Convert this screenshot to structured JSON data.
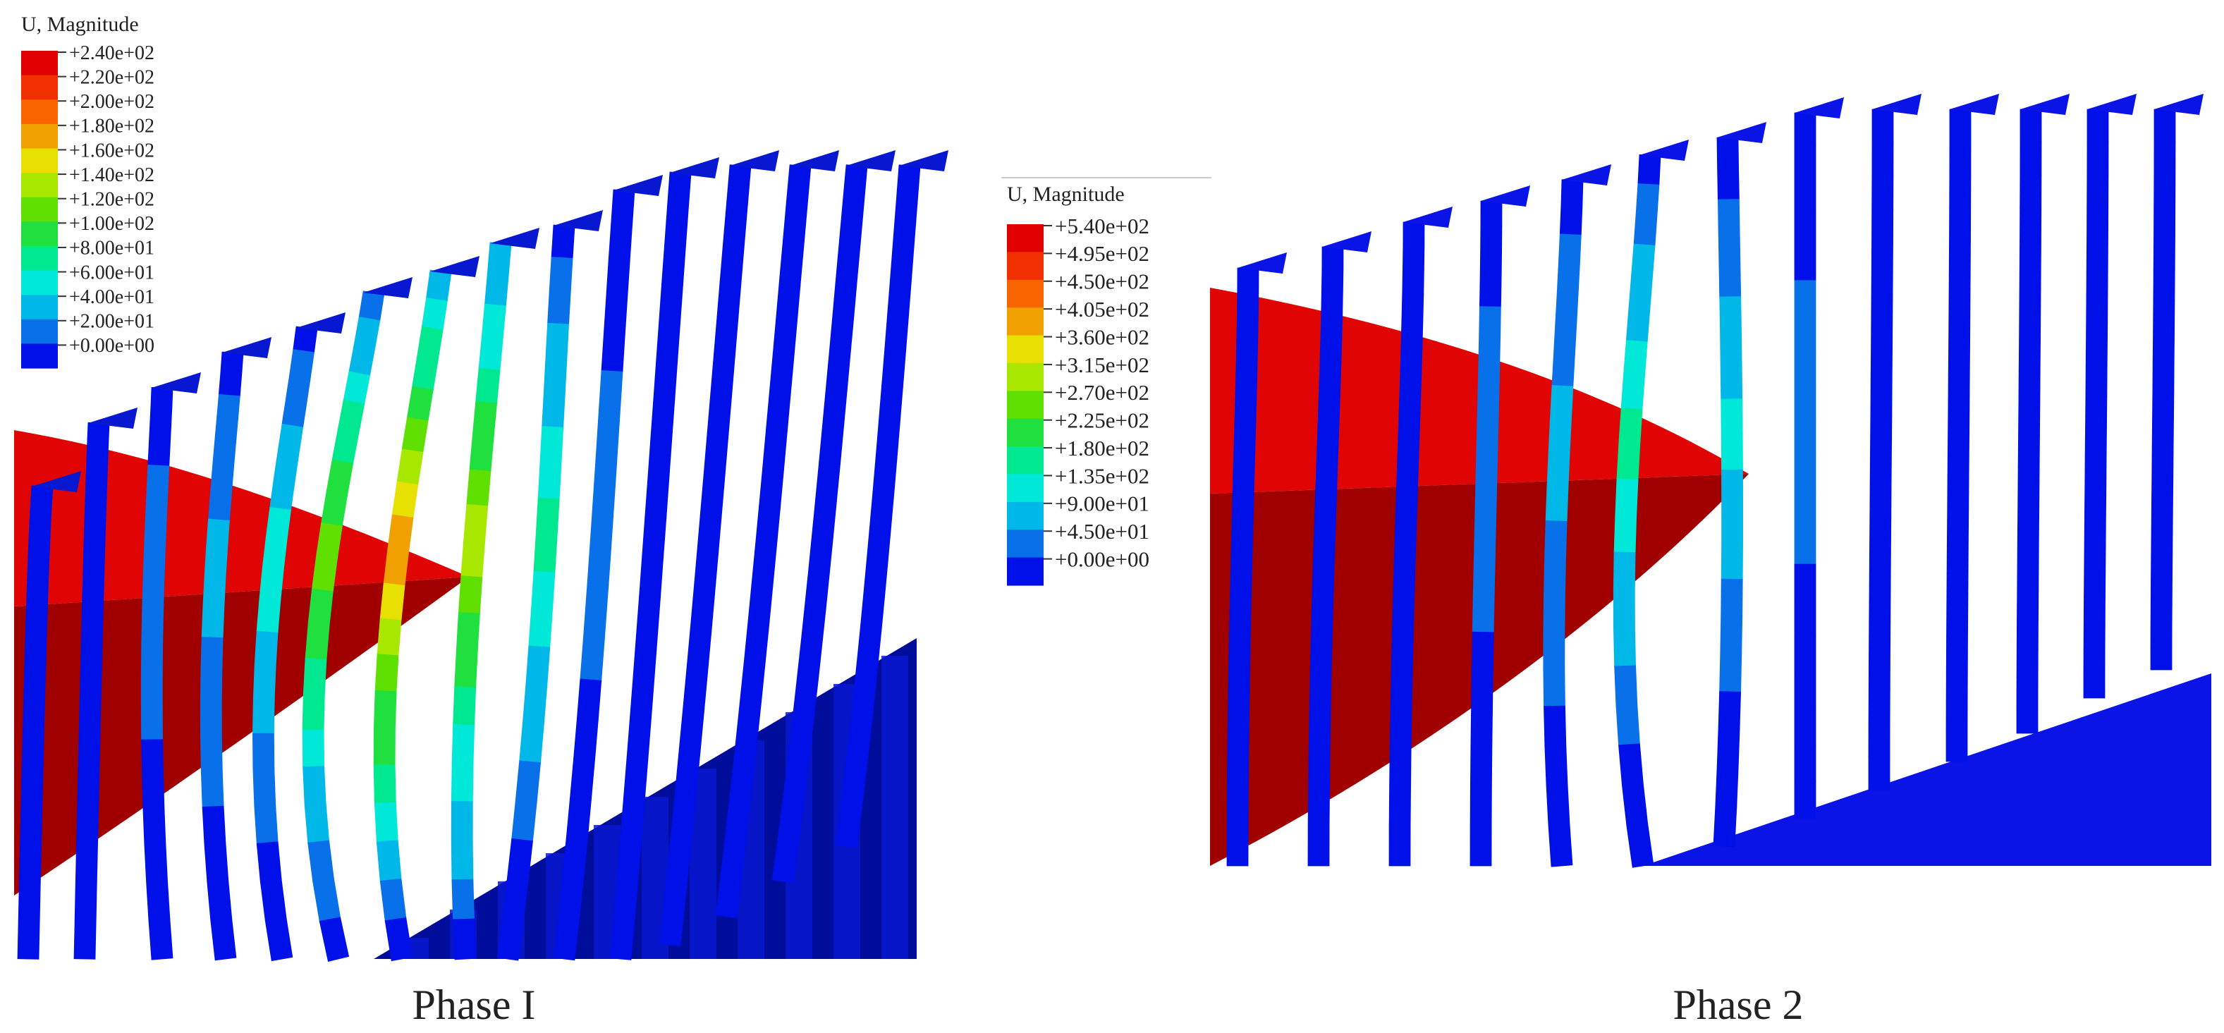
{
  "panels": [
    {
      "id": "phase-1",
      "caption": "Phase I",
      "legend": {
        "title": "U, Magnitude",
        "labels": [
          "+2.40e+02",
          "+2.20e+02",
          "+2.00e+02",
          "+1.80e+02",
          "+1.60e+02",
          "+1.40e+02",
          "+1.20e+02",
          "+1.00e+02",
          "+8.00e+01",
          "+6.00e+01",
          "+4.00e+01",
          "+2.00e+01",
          "+0.00e+00"
        ]
      }
    },
    {
      "id": "phase-2",
      "caption": "Phase 2",
      "legend": {
        "title": "U, Magnitude",
        "labels": [
          "+5.40e+02",
          "+4.95e+02",
          "+4.50e+02",
          "+4.05e+02",
          "+3.60e+02",
          "+3.15e+02",
          "+2.70e+02",
          "+2.25e+02",
          "+1.80e+02",
          "+1.35e+02",
          "+9.00e+01",
          "+4.50e+01",
          "+0.00e+00"
        ]
      }
    }
  ],
  "colors": {
    "scale": [
      "#e00000",
      "#f03000",
      "#f86400",
      "#f0a000",
      "#e8e000",
      "#a8e800",
      "#60e000",
      "#20e040",
      "#00e890",
      "#00e8d8",
      "#00b8e8",
      "#0870e8",
      "#0010e8"
    ],
    "projectile_light": "#e00404",
    "projectile_dark": "#a00000",
    "target_dark": "#000c9a",
    "target_mid": "#0818d0",
    "target_blue": "#0a14e6"
  }
}
